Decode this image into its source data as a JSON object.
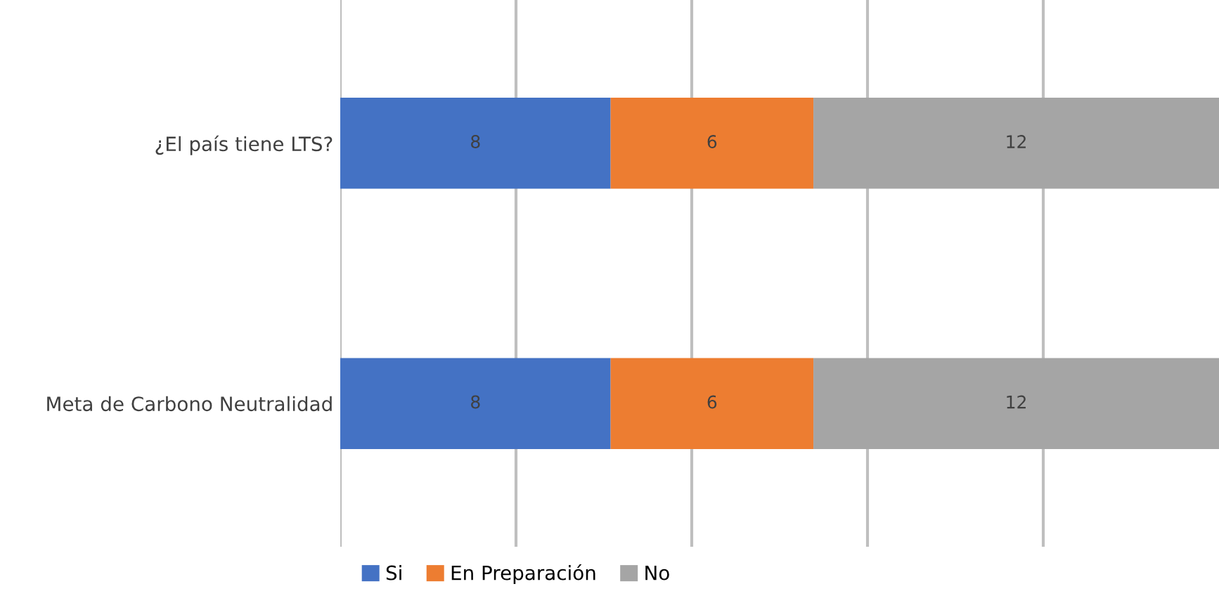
{
  "chart_data": {
    "type": "bar",
    "orientation": "horizontal",
    "stacked": true,
    "categories": [
      "¿El país tiene LTS?",
      "Meta de Carbono Neutralidad"
    ],
    "series": [
      {
        "name": "Si",
        "color": "#4472c4",
        "values": [
          8,
          8
        ]
      },
      {
        "name": "En Preparación",
        "color": "#ed7d31",
        "values": [
          6,
          6
        ]
      },
      {
        "name": "No",
        "color": "#a5a5a5",
        "values": [
          12,
          12
        ]
      }
    ],
    "xlim": [
      0,
      26
    ],
    "xticks": [
      {
        "value": 0,
        "label": null
      },
      {
        "value": 5.2,
        "label": null
      },
      {
        "value": 10.4,
        "label": null
      },
      {
        "value": 15.6,
        "label": null
      },
      {
        "value": 20.8,
        "label": null
      }
    ],
    "tick_labels": "y",
    "grid": "x",
    "legend": "bottom",
    "data_labels": true
  }
}
